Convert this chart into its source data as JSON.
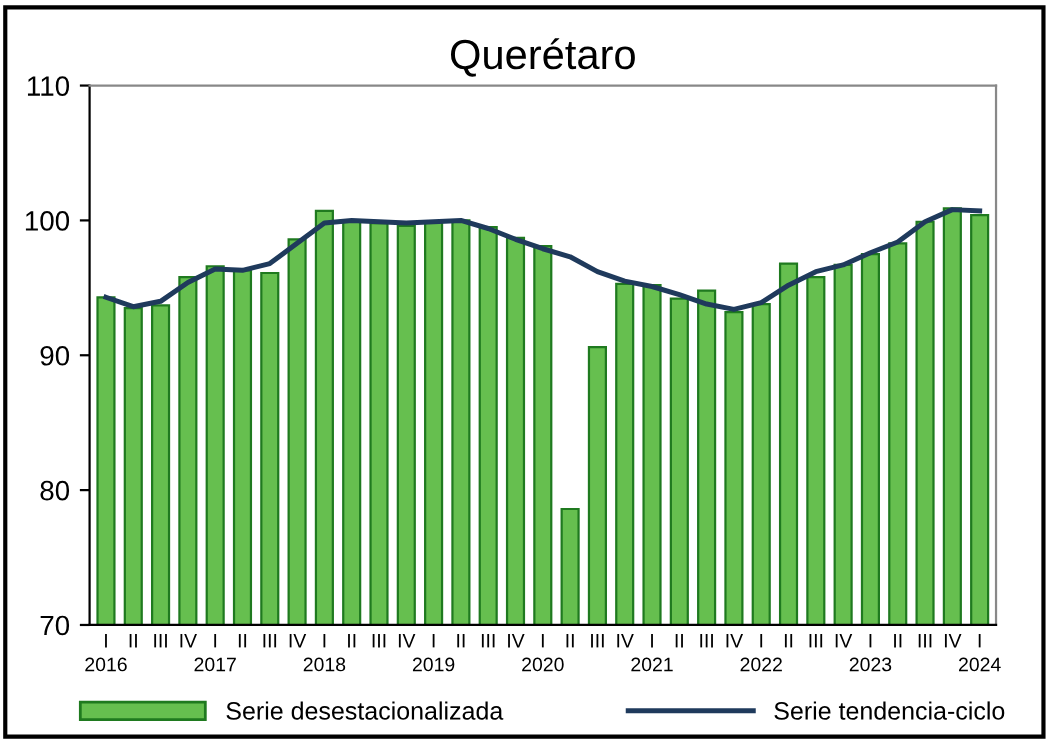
{
  "chart_data": {
    "type": "bar",
    "title": "Querétaro",
    "categories": [
      "I\n2016",
      "II",
      "III",
      "IV",
      "I\n2017",
      "II",
      "III",
      "IV",
      "I\n2018",
      "II",
      "III",
      "IV",
      "I\n2019",
      "II",
      "III",
      "IV",
      "I\n2020",
      "II",
      "III",
      "IV",
      "I\n2021",
      "II",
      "III",
      "IV",
      "I\n2022",
      "II",
      "III",
      "IV",
      "I\n2023",
      "II",
      "III",
      "IV",
      "I\n2024"
    ],
    "series": [
      {
        "name": "Serie desestacionalizada",
        "color": "#66bf4f",
        "values": [
          94.3,
          93.5,
          93.7,
          95.8,
          96.6,
          96.3,
          96.1,
          98.6,
          100.7,
          100.0,
          99.8,
          99.6,
          99.9,
          100.0,
          99.5,
          98.7,
          98.1,
          78.6,
          90.6,
          95.3,
          95.2,
          94.2,
          94.8,
          93.2,
          93.8,
          96.8,
          95.8,
          96.7,
          97.5,
          98.3,
          99.9,
          100.9,
          100.4
        ]
      },
      {
        "name": "Serie tendencia-ciclo",
        "type": "line",
        "color": "#1f3a5c",
        "values": [
          94.3,
          93.6,
          94.0,
          95.4,
          96.4,
          96.3,
          96.8,
          98.3,
          99.8,
          100.0,
          99.9,
          99.8,
          99.9,
          100.0,
          99.4,
          98.6,
          97.9,
          97.3,
          96.2,
          95.5,
          95.1,
          94.5,
          93.8,
          93.4,
          93.9,
          95.2,
          96.2,
          96.7,
          97.6,
          98.4,
          99.9,
          100.8,
          100.7
        ]
      }
    ],
    "ylim": [
      70,
      110
    ],
    "yticks": [
      70,
      80,
      90,
      100,
      110
    ],
    "grid": false,
    "legend": "bottom"
  }
}
